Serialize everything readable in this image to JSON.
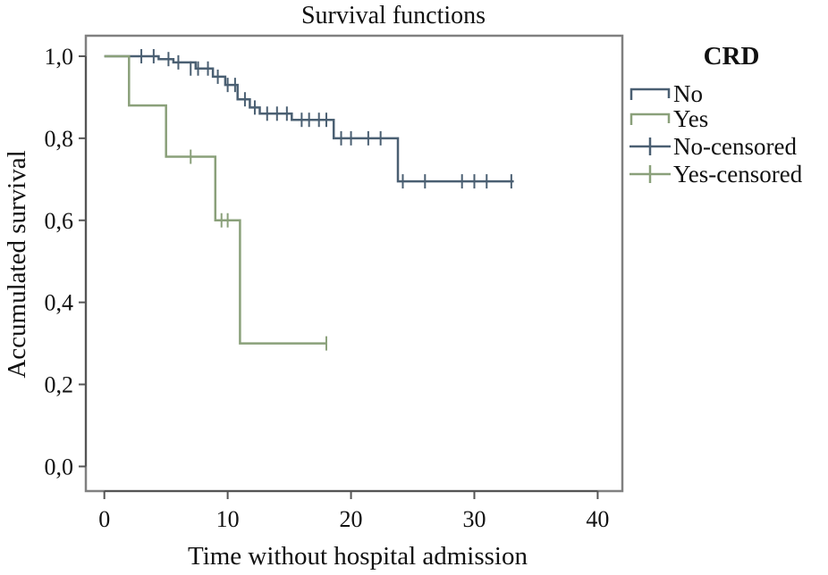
{
  "chart_data": {
    "type": "line",
    "title": "Survival functions",
    "xlabel": "Time without hospital admission",
    "ylabel": "Accumulated survival",
    "xlim": [
      -1.5,
      42
    ],
    "ylim": [
      -0.06,
      1.05
    ],
    "xticks": [
      0,
      10,
      20,
      30,
      40
    ],
    "xtick_labels": [
      "0",
      "10",
      "20",
      "30",
      "40"
    ],
    "yticks": [
      0.0,
      0.2,
      0.4,
      0.6,
      0.8,
      1.0
    ],
    "ytick_labels": [
      "0,0",
      "0,2",
      "0,4",
      "0,6",
      "0,8",
      "1,0"
    ],
    "grid": false,
    "legend": {
      "title": "CRD",
      "placement": "right",
      "entries": [
        "No",
        "Yes",
        "No-censored",
        "Yes-censored"
      ]
    },
    "series": [
      {
        "name": "No",
        "color": "#4a5f72",
        "step_points": [
          [
            0,
            1.0
          ],
          [
            4.4,
            1.0
          ],
          [
            4.4,
            0.993
          ],
          [
            5.6,
            0.993
          ],
          [
            5.6,
            0.985
          ],
          [
            7.4,
            0.985
          ],
          [
            7.4,
            0.97
          ],
          [
            8.8,
            0.97
          ],
          [
            8.8,
            0.95
          ],
          [
            9.8,
            0.95
          ],
          [
            9.8,
            0.93
          ],
          [
            10.8,
            0.93
          ],
          [
            10.8,
            0.895
          ],
          [
            11.8,
            0.895
          ],
          [
            11.8,
            0.875
          ],
          [
            12.6,
            0.875
          ],
          [
            12.6,
            0.86
          ],
          [
            15.2,
            0.86
          ],
          [
            15.2,
            0.845
          ],
          [
            18.6,
            0.845
          ],
          [
            18.6,
            0.8
          ],
          [
            23.8,
            0.8
          ],
          [
            23.8,
            0.695
          ],
          [
            33.2,
            0.695
          ]
        ],
        "censored": [
          [
            3.0,
            1.0
          ],
          [
            4.0,
            1.0
          ],
          [
            5.2,
            0.993
          ],
          [
            6.0,
            0.985
          ],
          [
            7.0,
            0.97
          ],
          [
            7.6,
            0.97
          ],
          [
            8.4,
            0.97
          ],
          [
            9.2,
            0.95
          ],
          [
            10.0,
            0.93
          ],
          [
            10.6,
            0.93
          ],
          [
            11.4,
            0.895
          ],
          [
            12.2,
            0.875
          ],
          [
            13.2,
            0.86
          ],
          [
            14.0,
            0.86
          ],
          [
            14.8,
            0.86
          ],
          [
            16.0,
            0.845
          ],
          [
            16.6,
            0.845
          ],
          [
            17.4,
            0.845
          ],
          [
            18.0,
            0.845
          ],
          [
            19.2,
            0.8
          ],
          [
            20.0,
            0.8
          ],
          [
            21.4,
            0.8
          ],
          [
            22.4,
            0.8
          ],
          [
            24.2,
            0.695
          ],
          [
            26.0,
            0.695
          ],
          [
            29.0,
            0.695
          ],
          [
            30.0,
            0.695
          ],
          [
            31.0,
            0.695
          ],
          [
            33.0,
            0.695
          ]
        ]
      },
      {
        "name": "Yes",
        "color": "#8aa07a",
        "step_points": [
          [
            0,
            1.0
          ],
          [
            2.0,
            1.0
          ],
          [
            2.0,
            0.88
          ],
          [
            5.0,
            0.88
          ],
          [
            5.0,
            0.755
          ],
          [
            9.0,
            0.755
          ],
          [
            9.0,
            0.6
          ],
          [
            11.0,
            0.6
          ],
          [
            11.0,
            0.3
          ],
          [
            18.0,
            0.3
          ]
        ],
        "censored": [
          [
            7.0,
            0.755
          ],
          [
            9.5,
            0.6
          ],
          [
            10.0,
            0.6
          ],
          [
            18.0,
            0.3
          ]
        ]
      }
    ]
  }
}
